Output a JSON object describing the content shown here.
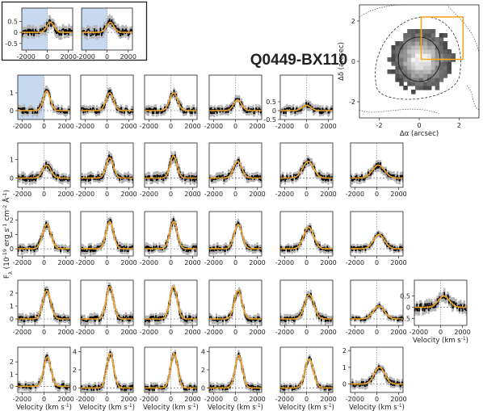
{
  "chart_data": {
    "type": "line",
    "title": "Q0449-BX110",
    "xlabel": "Velocity (km s$^{-1}$)",
    "ylabel": "F$_\\lambda$ (10$^{-19}$ erg s$^{-1}$ cm$^{-2}$ Å$^{-1}$)",
    "xlim": [
      -2400,
      2400
    ],
    "x_ticks": [
      -2000,
      0,
      2000
    ],
    "colors": {
      "data": "#000000",
      "errors": "#b4b4b4",
      "fit": "#f5a623",
      "mask": "#c6d9ef",
      "box": "#f5a623"
    },
    "panels": [
      {
        "row": 0,
        "col": 0,
        "peak_v": 300,
        "amp": 0.45,
        "width": 350,
        "ylim": [
          -0.8,
          1.1
        ],
        "y_ticks": [
          -0.5,
          0.0,
          0.5
        ],
        "masked": true
      },
      {
        "row": 0,
        "col": 1,
        "peak_v": 300,
        "amp": 0.45,
        "width": 350,
        "ylim": [
          -0.8,
          1.1
        ],
        "y_ticks": [],
        "masked": true
      },
      {
        "row": 1,
        "col": 0,
        "peak_v": 250,
        "amp": 1.1,
        "width": 320,
        "ylim": [
          -0.5,
          2.0
        ],
        "y_ticks": [
          0,
          1
        ],
        "masked": true
      },
      {
        "row": 1,
        "col": 1,
        "peak_v": 250,
        "amp": 1.0,
        "width": 340,
        "ylim": [
          -0.5,
          2.0
        ],
        "y_ticks": [],
        "masked": false
      },
      {
        "row": 1,
        "col": 2,
        "peak_v": 250,
        "amp": 1.0,
        "width": 360,
        "ylim": [
          -0.5,
          2.0
        ],
        "y_ticks": [],
        "masked": false
      },
      {
        "row": 1,
        "col": 3,
        "peak_v": 200,
        "amp": 0.6,
        "width": 360,
        "ylim": [
          -0.5,
          2.0
        ],
        "y_ticks": [],
        "masked": false
      },
      {
        "row": 1,
        "col": 4,
        "peak_v": 0,
        "amp": 0.3,
        "width": 400,
        "ylim": [
          -0.5,
          2.0
        ],
        "y_ticks": [
          0.5,
          0.0,
          -0.5
        ],
        "masked": false
      },
      {
        "row": 2,
        "col": 0,
        "peak_v": 250,
        "amp": 0.7,
        "width": 380,
        "ylim": [
          -0.5,
          1.9
        ],
        "y_ticks": [
          0,
          1
        ],
        "masked": false
      },
      {
        "row": 2,
        "col": 1,
        "peak_v": 250,
        "amp": 1.1,
        "width": 330,
        "ylim": [
          -0.5,
          1.9
        ],
        "y_ticks": [],
        "masked": false
      },
      {
        "row": 2,
        "col": 2,
        "peak_v": 250,
        "amp": 1.2,
        "width": 320,
        "ylim": [
          -0.5,
          1.9
        ],
        "y_ticks": [],
        "masked": false
      },
      {
        "row": 2,
        "col": 3,
        "peak_v": 200,
        "amp": 0.9,
        "width": 380,
        "ylim": [
          -0.5,
          1.9
        ],
        "y_ticks": [],
        "masked": false
      },
      {
        "row": 2,
        "col": 4,
        "peak_v": 150,
        "amp": 0.9,
        "width": 500,
        "ylim": [
          -0.5,
          1.9
        ],
        "y_ticks": [],
        "masked": false
      },
      {
        "row": 2,
        "col": 5,
        "peak_v": 150,
        "amp": 0.7,
        "width": 550,
        "ylim": [
          -0.5,
          1.9
        ],
        "y_ticks": [],
        "masked": false
      },
      {
        "row": 3,
        "col": 0,
        "peak_v": 250,
        "amp": 1.7,
        "width": 380,
        "ylim": [
          -0.5,
          2.6
        ],
        "y_ticks": [
          0,
          1,
          2
        ],
        "masked": false
      },
      {
        "row": 3,
        "col": 1,
        "peak_v": 250,
        "amp": 1.9,
        "width": 340,
        "ylim": [
          -0.5,
          2.6
        ],
        "y_ticks": [],
        "masked": false
      },
      {
        "row": 3,
        "col": 2,
        "peak_v": 250,
        "amp": 1.9,
        "width": 340,
        "ylim": [
          -0.5,
          2.6
        ],
        "y_ticks": [],
        "masked": false
      },
      {
        "row": 3,
        "col": 3,
        "peak_v": 250,
        "amp": 1.7,
        "width": 360,
        "ylim": [
          -0.5,
          2.6
        ],
        "y_ticks": [],
        "masked": false
      },
      {
        "row": 3,
        "col": 4,
        "peak_v": 200,
        "amp": 1.5,
        "width": 450,
        "ylim": [
          -0.5,
          2.6
        ],
        "y_ticks": [],
        "masked": false
      },
      {
        "row": 3,
        "col": 5,
        "peak_v": 200,
        "amp": 1.0,
        "width": 500,
        "ylim": [
          -0.5,
          2.6
        ],
        "y_ticks": [],
        "masked": false
      },
      {
        "row": 4,
        "col": 0,
        "peak_v": 250,
        "amp": 2.2,
        "width": 360,
        "ylim": [
          -0.5,
          3.0
        ],
        "y_ticks": [
          0,
          1,
          2
        ],
        "masked": false
      },
      {
        "row": 4,
        "col": 1,
        "peak_v": 250,
        "amp": 2.5,
        "width": 330,
        "ylim": [
          -0.5,
          3.0
        ],
        "y_ticks": [],
        "masked": false
      },
      {
        "row": 4,
        "col": 2,
        "peak_v": 250,
        "amp": 2.5,
        "width": 330,
        "ylim": [
          -0.5,
          3.0
        ],
        "y_ticks": [],
        "masked": false
      },
      {
        "row": 4,
        "col": 3,
        "peak_v": 250,
        "amp": 2.2,
        "width": 350,
        "ylim": [
          -0.5,
          3.0
        ],
        "y_ticks": [],
        "masked": false
      },
      {
        "row": 4,
        "col": 4,
        "peak_v": 250,
        "amp": 1.9,
        "width": 420,
        "ylim": [
          -0.5,
          3.0
        ],
        "y_ticks": [],
        "masked": false
      },
      {
        "row": 4,
        "col": 5,
        "peak_v": 200,
        "amp": 1.0,
        "width": 500,
        "ylim": [
          -0.5,
          3.0
        ],
        "y_ticks": [],
        "masked": false
      },
      {
        "row": 4,
        "col": 6,
        "peak_v": 300,
        "amp": 0.5,
        "width": 500,
        "ylim": [
          -0.8,
          1.2
        ],
        "y_ticks": [
          0.5,
          0.0,
          -0.5
        ],
        "masked": false,
        "xlabel": true
      },
      {
        "row": 5,
        "col": 0,
        "peak_v": 300,
        "amp": 2.4,
        "width": 330,
        "ylim": [
          -0.5,
          3.2
        ],
        "y_ticks": [
          0,
          1,
          2
        ],
        "masked": false,
        "xlabel": true
      },
      {
        "row": 5,
        "col": 1,
        "peak_v": 300,
        "amp": 3.8,
        "width": 320,
        "ylim": [
          -0.5,
          4.5
        ],
        "y_ticks": [
          0,
          2,
          4
        ],
        "masked": false,
        "xlabel": true
      },
      {
        "row": 5,
        "col": 2,
        "peak_v": 300,
        "amp": 3.8,
        "width": 320,
        "ylim": [
          -0.5,
          4.5
        ],
        "y_ticks": [],
        "masked": false,
        "xlabel": true
      },
      {
        "row": 5,
        "col": 3,
        "peak_v": 300,
        "amp": 3.6,
        "width": 330,
        "ylim": [
          -0.5,
          4.5
        ],
        "y_ticks": [
          0,
          2,
          4
        ],
        "masked": false,
        "xlabel": true
      },
      {
        "row": 5,
        "col": 4,
        "peak_v": 250,
        "amp": 3.2,
        "width": 380,
        "ylim": [
          -0.5,
          4.5
        ],
        "y_ticks": [],
        "masked": false,
        "xlabel": true
      },
      {
        "row": 5,
        "col": 5,
        "peak_v": 250,
        "amp": 1.0,
        "width": 480,
        "ylim": [
          -0.5,
          2.2
        ],
        "y_ticks": [
          0,
          1,
          2
        ],
        "masked": false,
        "xlabel": true
      }
    ],
    "inset_map": {
      "type": "heatmap",
      "xlabel": "Δα (arcsec)",
      "ylabel": "Δδ (arcsec)",
      "xlim": [
        -3,
        3
      ],
      "ylim": [
        -2.8,
        2.8
      ],
      "x_ticks": [
        -2,
        0,
        2
      ],
      "y_ticks": [
        -2,
        0,
        2
      ],
      "grid": false
    }
  }
}
